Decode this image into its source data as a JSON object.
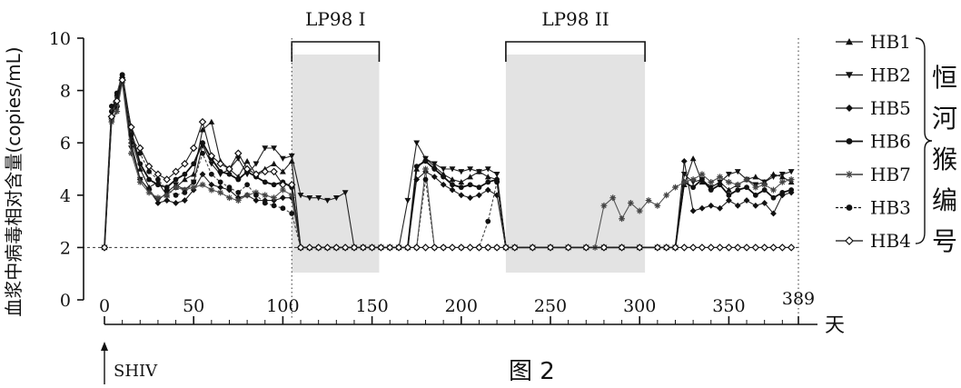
{
  "chart_data": {
    "type": "line",
    "ylabel": "血浆中病毒相对含量(copies/mL)",
    "xlabel": "天",
    "caption": "图 2",
    "xlim": [
      0,
      389
    ],
    "ylim": [
      0,
      10
    ],
    "x_ticks": [
      0,
      50,
      100,
      150,
      200,
      250,
      300,
      350
    ],
    "x_end_label": "389",
    "y_ticks": [
      0,
      2,
      4,
      6,
      8,
      10
    ],
    "detection_limit": 2,
    "annotation": {
      "label": "SHIV",
      "x": 0
    },
    "treatment_periods": [
      {
        "label": "LP98 I",
        "start": 105,
        "end": 154
      },
      {
        "label": "LP98 II",
        "start": 225,
        "end": 303
      }
    ],
    "legend_group_label": "恒河猴编号",
    "series": [
      {
        "name": "HB1",
        "marker": "triangle-up",
        "color": "#222222",
        "dashed": false,
        "x": [
          0,
          4,
          7,
          10,
          15,
          20,
          25,
          30,
          35,
          40,
          45,
          50,
          55,
          60,
          65,
          70,
          75,
          80,
          85,
          90,
          95,
          100,
          105,
          110,
          115,
          120,
          125,
          130,
          135,
          140,
          145,
          150,
          155,
          160,
          165,
          170,
          175,
          180,
          185,
          190,
          195,
          200,
          205,
          210,
          215,
          220,
          225,
          230,
          240,
          250,
          260,
          270,
          280,
          290,
          300,
          310,
          315,
          320,
          325,
          330,
          335,
          340,
          345,
          350,
          355,
          360,
          365,
          370,
          375,
          380,
          385
        ],
        "y": [
          2,
          7,
          7.5,
          8.5,
          6.2,
          5.0,
          4.3,
          4.5,
          4.0,
          4.3,
          4.6,
          4.8,
          6.5,
          6.8,
          5.3,
          5.0,
          4.7,
          5.3,
          4.8,
          5.0,
          5.2,
          4.9,
          5.3,
          2,
          2,
          2,
          2,
          2,
          2,
          2,
          2,
          2,
          2,
          2,
          2,
          2,
          5.0,
          5.4,
          5.1,
          4.8,
          4.6,
          4.5,
          4.7,
          4.9,
          4.7,
          4.6,
          2,
          2,
          2,
          2,
          2,
          2,
          2,
          2,
          2,
          2,
          2,
          2,
          4.4,
          5.4,
          4.5,
          4.3,
          4.5,
          4.2,
          4.4,
          4.6,
          4.7,
          4.5,
          4.8,
          4.7,
          4.5
        ]
      },
      {
        "name": "HB2",
        "marker": "triangle-down",
        "color": "#222222",
        "dashed": false,
        "x": [
          0,
          4,
          7,
          10,
          15,
          20,
          25,
          30,
          35,
          40,
          45,
          50,
          55,
          60,
          65,
          70,
          75,
          80,
          85,
          90,
          95,
          100,
          105,
          110,
          115,
          120,
          125,
          130,
          135,
          140,
          145,
          150,
          155,
          160,
          165,
          170,
          175,
          180,
          185,
          190,
          195,
          200,
          205,
          210,
          215,
          220,
          225,
          230,
          240,
          250,
          260,
          270,
          280,
          290,
          300,
          310,
          315,
          320,
          325,
          330,
          335,
          340,
          345,
          350,
          355,
          360,
          365,
          370,
          375,
          380,
          385
        ],
        "y": [
          2,
          6.8,
          7.3,
          8.4,
          5.8,
          4.6,
          4.2,
          3.8,
          4.1,
          4.4,
          4.2,
          4.5,
          5.9,
          5.2,
          4.8,
          5.0,
          5.4,
          4.8,
          5.2,
          5.8,
          5.8,
          5.4,
          5.5,
          4.0,
          3.9,
          3.9,
          3.8,
          3.9,
          4.1,
          2,
          2,
          2,
          2,
          2,
          2,
          3.8,
          6.0,
          5.4,
          5.2,
          5.0,
          5.0,
          4.9,
          5.0,
          4.9,
          5.0,
          4.8,
          2,
          2,
          2,
          2,
          2,
          2,
          2,
          2,
          2,
          2,
          2,
          2,
          4.8,
          4.5,
          4.6,
          4.3,
          4.5,
          4.8,
          4.9,
          4.6,
          4.4,
          4.5,
          4.7,
          4.8,
          4.9
        ]
      },
      {
        "name": "HB5",
        "marker": "diamond",
        "color": "#222222",
        "dashed": false,
        "x": [
          0,
          4,
          7,
          10,
          15,
          20,
          25,
          30,
          35,
          40,
          45,
          50,
          55,
          60,
          65,
          70,
          75,
          80,
          85,
          90,
          95,
          100,
          105,
          110,
          115,
          120,
          125,
          130,
          135,
          140,
          145,
          150,
          155,
          160,
          165,
          170,
          175,
          180,
          185,
          190,
          195,
          200,
          205,
          210,
          215,
          220,
          225,
          230,
          240,
          250,
          260,
          270,
          280,
          290,
          300,
          310,
          315,
          320,
          325,
          330,
          335,
          340,
          345,
          350,
          355,
          360,
          365,
          370,
          375,
          380,
          385
        ],
        "y": [
          2,
          7.0,
          7.6,
          8.5,
          6.0,
          4.6,
          4.2,
          3.7,
          3.8,
          3.7,
          3.8,
          4.2,
          4.8,
          4.4,
          4.3,
          4.2,
          3.9,
          4.0,
          3.8,
          3.8,
          3.8,
          3.9,
          3.9,
          2,
          2,
          2,
          2,
          2,
          2,
          2,
          2,
          2,
          2,
          2,
          2,
          2,
          4.6,
          4.9,
          4.7,
          4.4,
          4.2,
          4.0,
          3.9,
          4.0,
          4.2,
          4.0,
          2,
          2,
          2,
          2,
          2,
          2,
          2,
          2,
          2,
          2,
          2,
          2,
          5.3,
          3.4,
          3.5,
          3.6,
          3.5,
          3.8,
          3.6,
          3.8,
          3.6,
          3.7,
          3.3,
          4.0,
          4.1
        ]
      },
      {
        "name": "HB6",
        "marker": "circle",
        "color": "#111111",
        "dashed": false,
        "x": [
          0,
          4,
          7,
          10,
          15,
          20,
          25,
          30,
          35,
          40,
          45,
          50,
          55,
          60,
          65,
          70,
          75,
          80,
          85,
          90,
          95,
          100,
          105,
          110,
          115,
          120,
          125,
          130,
          135,
          140,
          145,
          150,
          155,
          160,
          165,
          170,
          175,
          180,
          185,
          190,
          195,
          200,
          205,
          210,
          215,
          220,
          225,
          230,
          240,
          250,
          260,
          270,
          280,
          290,
          300,
          310,
          315,
          320,
          325,
          330,
          335,
          340,
          345,
          350,
          355,
          360,
          365,
          370,
          375,
          380,
          385
        ],
        "y": [
          2,
          7.2,
          7.8,
          8.6,
          6.4,
          5.2,
          4.6,
          4.4,
          4.3,
          4.6,
          4.8,
          5.2,
          6.0,
          5.4,
          4.9,
          4.8,
          4.6,
          4.9,
          4.7,
          4.5,
          4.4,
          4.5,
          4.3,
          2,
          2,
          2,
          2,
          2,
          2,
          2,
          2,
          2,
          2,
          2,
          2,
          2,
          5.1,
          5.3,
          5.0,
          4.7,
          4.4,
          4.3,
          4.4,
          4.3,
          4.5,
          4.6,
          2,
          2,
          2,
          2,
          2,
          2,
          2,
          2,
          2,
          2,
          2,
          2,
          4.5,
          4.3,
          4.6,
          4.2,
          4.4,
          4.0,
          4.2,
          4.3,
          4.0,
          4.2,
          3.9,
          4.1,
          4.2
        ]
      },
      {
        "name": "HB7",
        "marker": "star",
        "color": "#555555",
        "dashed": false,
        "x": [
          0,
          4,
          7,
          10,
          15,
          20,
          25,
          30,
          35,
          40,
          45,
          50,
          55,
          60,
          65,
          70,
          75,
          80,
          85,
          90,
          95,
          100,
          105,
          110,
          120,
          130,
          140,
          150,
          160,
          170,
          175,
          180,
          185,
          190,
          200,
          210,
          215,
          220,
          225,
          230,
          240,
          250,
          260,
          270,
          275,
          280,
          285,
          290,
          295,
          300,
          305,
          310,
          315,
          320,
          325,
          330,
          335,
          340,
          345,
          350,
          355,
          360,
          365,
          370,
          375,
          380,
          385
        ],
        "y": [
          2,
          6.8,
          7.2,
          8.3,
          5.6,
          4.5,
          4.1,
          3.9,
          4.0,
          4.3,
          4.2,
          4.3,
          4.4,
          4.2,
          4.1,
          3.9,
          3.8,
          4.0,
          4.1,
          4.0,
          3.9,
          4.2,
          4.0,
          2,
          2,
          2,
          2,
          2,
          2,
          2,
          2,
          5.0,
          2,
          2,
          2,
          2,
          2,
          2,
          2,
          2,
          2,
          2,
          2,
          2,
          2,
          3.6,
          3.9,
          3.1,
          3.7,
          3.4,
          3.8,
          3.6,
          4.0,
          4.3,
          4.5,
          4.6,
          4.8,
          4.5,
          4.7,
          4.5,
          4.4,
          4.6,
          4.3,
          4.4,
          4.2,
          4.5,
          4.6
        ]
      },
      {
        "name": "HB3",
        "marker": "circle",
        "color": "#444444",
        "dashed": true,
        "x": [
          0,
          4,
          7,
          10,
          15,
          20,
          25,
          30,
          35,
          40,
          45,
          50,
          55,
          60,
          65,
          70,
          75,
          80,
          85,
          90,
          95,
          100,
          105,
          110,
          115,
          120,
          125,
          130,
          135,
          140,
          145,
          150,
          155,
          160,
          165,
          170,
          175,
          180,
          185,
          190,
          195,
          200,
          205,
          210,
          215,
          220,
          225,
          230,
          240,
          250,
          260,
          270,
          280,
          290,
          300,
          310,
          315,
          320,
          325,
          330,
          335,
          340,
          345,
          350,
          355,
          360,
          365,
          370,
          375,
          380,
          385
        ],
        "y": [
          2,
          7.4,
          7.9,
          8.6,
          6.3,
          5.6,
          4.9,
          4.6,
          4.2,
          4.0,
          4.1,
          4.5,
          5.6,
          4.8,
          4.5,
          4.3,
          4.1,
          4.4,
          4.0,
          3.7,
          3.6,
          3.5,
          3.3,
          2,
          2,
          2,
          2,
          2,
          2,
          2,
          2,
          2,
          2,
          2,
          2,
          2,
          2,
          4.6,
          2,
          2,
          2,
          2,
          2,
          2,
          3.0,
          4.5,
          2,
          2,
          2,
          2,
          2,
          2,
          2,
          2,
          2,
          2,
          2,
          2,
          2,
          2,
          2,
          2,
          2,
          2,
          2,
          2,
          2,
          2,
          2,
          2,
          2
        ]
      },
      {
        "name": "HB4",
        "marker": "open-diamond",
        "color": "#222222",
        "dashed": false,
        "x": [
          0,
          4,
          7,
          10,
          15,
          20,
          25,
          30,
          35,
          40,
          45,
          50,
          55,
          60,
          65,
          70,
          75,
          80,
          85,
          90,
          95,
          100,
          105,
          110,
          115,
          120,
          125,
          130,
          135,
          140,
          145,
          150,
          155,
          160,
          165,
          170,
          175,
          180,
          185,
          190,
          195,
          200,
          205,
          210,
          215,
          220,
          225,
          230,
          240,
          250,
          260,
          270,
          280,
          290,
          300,
          310,
          315,
          320,
          325,
          330,
          335,
          340,
          345,
          350,
          355,
          360,
          365,
          370,
          375,
          380,
          385
        ],
        "y": [
          2,
          7.0,
          7.6,
          8.4,
          6.6,
          5.8,
          5.1,
          4.8,
          4.6,
          4.9,
          5.2,
          5.8,
          6.8,
          5.5,
          5.2,
          5.0,
          5.6,
          5.0,
          4.8,
          4.9,
          4.9,
          4.4,
          4.4,
          2,
          2,
          2,
          2,
          2,
          2,
          2,
          2,
          2,
          2,
          2,
          2,
          2,
          2,
          2,
          2,
          2,
          2,
          2,
          2,
          2,
          2,
          2,
          2,
          2,
          2,
          2,
          2,
          2,
          2,
          2,
          2,
          2,
          2,
          2,
          2,
          2,
          2,
          2,
          2,
          2,
          2,
          2,
          2,
          2,
          2,
          2,
          2
        ]
      }
    ]
  }
}
